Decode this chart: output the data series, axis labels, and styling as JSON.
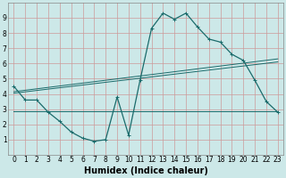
{
  "xlabel": "Humidex (Indice chaleur)",
  "bg_color": "#cce8e8",
  "grid_color": "#cc9999",
  "line_color": "#1a6b6b",
  "xlim": [
    -0.5,
    23.5
  ],
  "ylim": [
    0,
    10
  ],
  "xticks": [
    0,
    1,
    2,
    3,
    4,
    5,
    6,
    7,
    8,
    9,
    10,
    11,
    12,
    13,
    14,
    15,
    16,
    17,
    18,
    19,
    20,
    21,
    22,
    23
  ],
  "yticks": [
    1,
    2,
    3,
    4,
    5,
    6,
    7,
    8,
    9
  ],
  "curve1_x": [
    0,
    1,
    2,
    3,
    4,
    5,
    6,
    7,
    8,
    9,
    10,
    11,
    12,
    13,
    14,
    15,
    16,
    17,
    18,
    19,
    20,
    21,
    22,
    23
  ],
  "curve1_y": [
    4.5,
    3.6,
    3.6,
    2.8,
    2.2,
    1.5,
    1.1,
    0.9,
    1.0,
    3.8,
    1.3,
    4.9,
    8.3,
    9.3,
    8.9,
    9.3,
    8.4,
    7.6,
    7.4,
    6.6,
    6.2,
    4.9,
    3.5,
    2.8
  ],
  "line1_x": [
    0,
    23
  ],
  "line1_y": [
    4.15,
    6.3
  ],
  "line2_x": [
    0,
    23
  ],
  "line2_y": [
    4.05,
    6.1
  ],
  "line3_x": [
    0,
    23
  ],
  "line3_y": [
    2.85,
    2.85
  ],
  "tick_fontsize": 5.5,
  "label_fontsize": 7.0
}
